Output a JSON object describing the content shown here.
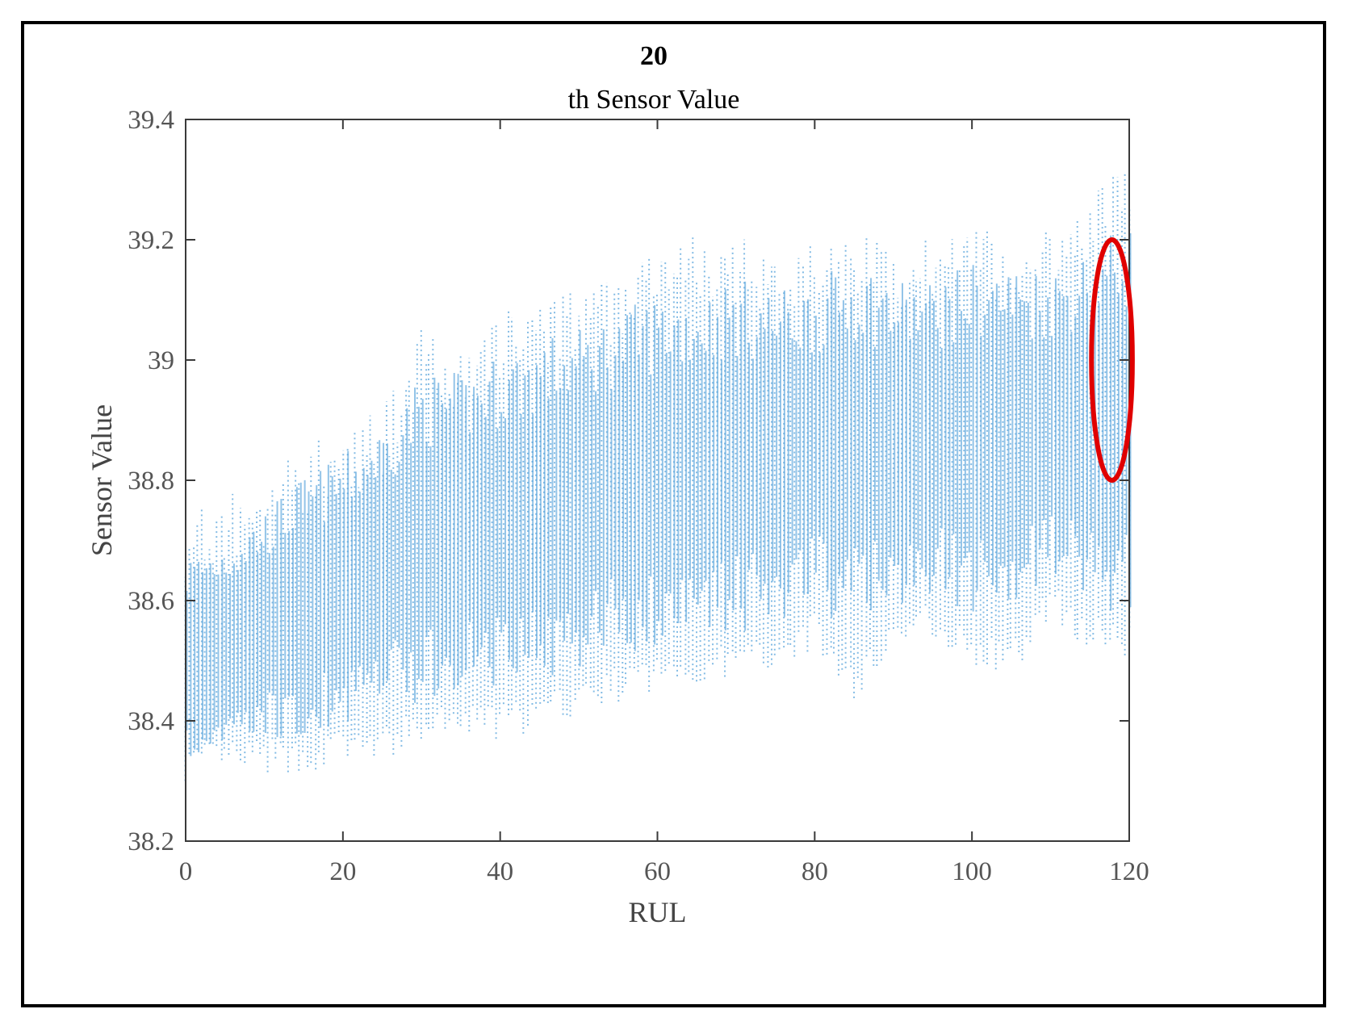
{
  "chart_data": {
    "type": "scatter",
    "title_line1": "20",
    "title_line2": "th Sensor Value",
    "xlabel": "RUL",
    "ylabel": "Sensor Value",
    "xlim": [
      0,
      120
    ],
    "ylim": [
      38.2,
      39.4
    ],
    "xticks": [
      0,
      20,
      40,
      60,
      80,
      100,
      120
    ],
    "xtick_labels": [
      "0",
      "20",
      "40",
      "60",
      "80",
      "100",
      "120"
    ],
    "yticks": [
      38.2,
      38.4,
      38.6,
      38.8,
      39.0,
      39.2,
      39.4
    ],
    "ytick_labels": [
      "38.2",
      "38.4",
      "38.6",
      "38.8",
      "39",
      "39.2",
      "39.4"
    ],
    "grid": false,
    "marker_color": "#5aa5dc",
    "highlight": {
      "shape": "ellipse",
      "color": "#e00000",
      "x_center": 117.8,
      "y_center": 39.0,
      "x_half_width": 2.6,
      "y_half_height": 0.2
    },
    "series": [
      {
        "x": [
          0,
          5,
          10,
          15,
          20,
          25,
          30,
          35,
          40,
          45,
          50,
          55,
          60,
          65,
          70,
          75,
          80,
          85,
          90,
          95,
          100,
          105,
          110,
          115,
          120
        ],
        "y_min": [
          38.3,
          38.31,
          38.31,
          38.31,
          38.33,
          38.33,
          38.36,
          38.37,
          38.37,
          38.38,
          38.41,
          38.43,
          38.45,
          38.46,
          38.47,
          38.49,
          38.52,
          38.43,
          38.52,
          38.54,
          38.49,
          38.47,
          38.57,
          38.52,
          38.5
        ],
        "y_max": [
          38.75,
          38.78,
          38.8,
          38.86,
          38.89,
          38.92,
          39.06,
          39.02,
          39.08,
          39.1,
          39.12,
          39.14,
          39.21,
          39.21,
          39.21,
          39.19,
          39.2,
          39.21,
          39.21,
          39.2,
          39.23,
          39.2,
          39.23,
          39.27,
          39.34
        ],
        "y_center": [
          38.5,
          38.52,
          38.56,
          38.59,
          38.62,
          38.66,
          38.7,
          38.72,
          38.73,
          38.75,
          38.77,
          38.8,
          38.81,
          38.82,
          38.84,
          38.84,
          38.86,
          38.86,
          38.86,
          38.87,
          38.87,
          38.87,
          38.89,
          38.89,
          38.9
        ]
      }
    ]
  }
}
